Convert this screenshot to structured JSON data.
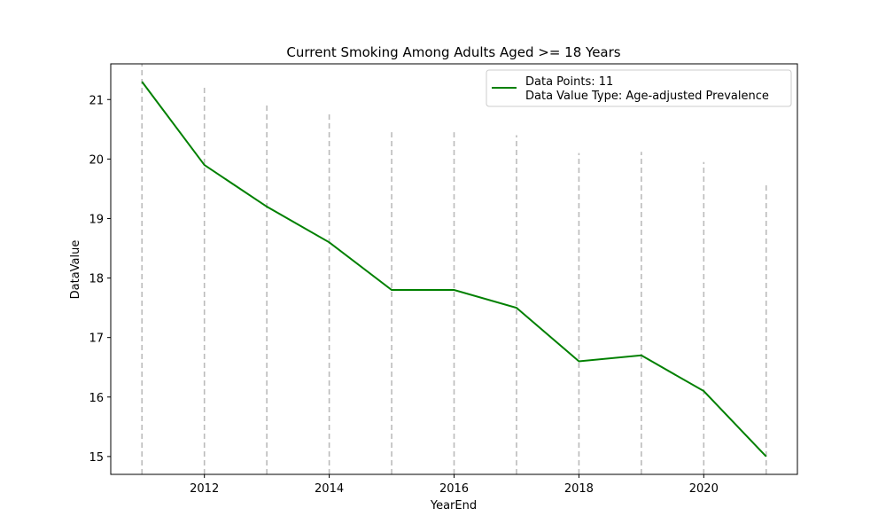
{
  "chart_data": {
    "type": "line",
    "title": "Current Smoking Among Adults Aged >= 18 Years",
    "xlabel": "YearEnd",
    "ylabel": "DataValue",
    "x": [
      2011,
      2012,
      2013,
      2014,
      2015,
      2016,
      2017,
      2018,
      2019,
      2020,
      2021
    ],
    "series": [
      {
        "values": [
          21.3,
          19.9,
          19.2,
          18.6,
          17.8,
          17.8,
          17.5,
          16.6,
          16.7,
          16.1,
          15.0
        ],
        "color": "#008000"
      }
    ],
    "error_bars": {
      "upper": [
        21.6,
        21.2,
        20.95,
        20.75,
        20.45,
        20.45,
        20.4,
        20.1,
        20.12,
        19.95,
        19.58
      ],
      "lower": [
        14.7,
        14.7,
        14.7,
        14.7,
        14.7,
        14.7,
        14.7,
        14.7,
        14.7,
        14.7,
        14.7
      ],
      "color": "#bbbbbb",
      "style": "dashed"
    },
    "xlim": [
      2010.5,
      2021.5
    ],
    "ylim": [
      14.7,
      21.6
    ],
    "xticks": [
      "2012",
      "2014",
      "2016",
      "2018",
      "2020"
    ],
    "yticks": [
      "15",
      "16",
      "17",
      "18",
      "19",
      "20",
      "21"
    ],
    "grid": false,
    "legend": {
      "position": "top-right",
      "lines": [
        "Data Points: 11",
        "Data Value Type: Age-adjusted Prevalence"
      ]
    }
  }
}
